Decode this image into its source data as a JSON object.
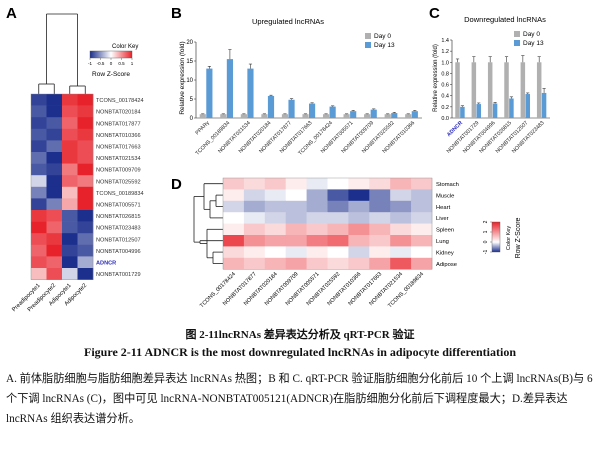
{
  "panel_letters": {
    "a": "A",
    "b": "B",
    "c": "C",
    "d": "D"
  },
  "panel_a": {
    "color_key": {
      "title": "Color Key",
      "ticks": [
        "-1",
        "-0.5",
        "0",
        "0.5",
        "1"
      ],
      "label": "Row Z-Score"
    },
    "rows": [
      "TCONS_00178424",
      "NONBTAT020184",
      "NONBTAT017877",
      "NONBTAT010366",
      "NONBTAT017663",
      "NONBTAT021534",
      "NONBTAT009709",
      "NONBTAT025592",
      "TCONS_00189834",
      "NONBTAT005571",
      "NONBTAT026815",
      "NONBTAT023483",
      "NONBTAT012507",
      "NONBTAT004996",
      "ADNCR",
      "NONBTAT001729"
    ],
    "columns": [
      "Preadipocyte1",
      "Preadipocyte2",
      "Adipocyte1",
      "Adipocyte2"
    ],
    "values": [
      [
        -0.9,
        -1.0,
        0.9,
        1.0
      ],
      [
        -0.8,
        -1.0,
        0.8,
        0.9
      ],
      [
        -0.9,
        -0.8,
        0.7,
        1.0
      ],
      [
        -0.8,
        -0.9,
        0.8,
        0.9
      ],
      [
        -0.9,
        -0.7,
        0.9,
        0.8
      ],
      [
        -0.7,
        -1.0,
        0.9,
        0.8
      ],
      [
        -0.8,
        -0.9,
        0.6,
        1.0
      ],
      [
        -0.2,
        -1.0,
        0.7,
        0.6
      ],
      [
        -0.6,
        -1.0,
        0.3,
        1.0
      ],
      [
        -0.9,
        -0.6,
        0.4,
        1.0
      ],
      [
        0.9,
        0.8,
        -0.8,
        -1.0
      ],
      [
        1.0,
        0.7,
        -0.8,
        -0.9
      ],
      [
        0.8,
        0.9,
        -1.0,
        -0.7
      ],
      [
        0.7,
        1.0,
        -0.9,
        -0.8
      ],
      [
        0.8,
        0.7,
        -1.0,
        -0.4
      ],
      [
        0.3,
        0.8,
        -0.2,
        -1.0
      ]
    ],
    "highlight_row": "ADNCR"
  },
  "chart_data": [
    {
      "type": "bar",
      "title": "Upregulated lncRNAs",
      "ylabel": "Relative expression (fold)",
      "ylim": [
        0,
        20
      ],
      "yticks": [
        0,
        5,
        10,
        15,
        20
      ],
      "categories": [
        "PPARγ",
        "TCONS_00189834",
        "NONBTAT021534",
        "NONBTAT020184",
        "NONBTAT017877",
        "NONBTAT017663",
        "TCONS_00178424",
        "NONBTAT005571",
        "NONBTAT009709",
        "NONBTAT025592",
        "NONBTAT010366"
      ],
      "series": [
        {
          "name": "Day 0",
          "values": [
            1,
            1,
            1,
            1,
            1,
            1,
            1,
            1,
            1,
            1,
            1
          ],
          "errors": [
            0.1,
            0.1,
            0.1,
            0.1,
            0.1,
            0.1,
            0.1,
            0.1,
            0.1,
            0.1,
            0.1
          ]
        },
        {
          "name": "Day 13",
          "values": [
            13.0,
            15.5,
            13.0,
            5.8,
            4.8,
            3.8,
            3.0,
            1.8,
            2.2,
            1.3,
            1.8
          ],
          "errors": [
            0.6,
            2.5,
            1.2,
            0.2,
            0.3,
            0.2,
            0.2,
            0.2,
            0.2,
            0.2,
            0.2
          ]
        }
      ],
      "legend": "top-right"
    },
    {
      "type": "bar",
      "title": "Downregulated lncRNAs",
      "ylabel": "Relative expression (fold)",
      "ylim": [
        0,
        1.4
      ],
      "yticks": [
        0.0,
        0.2,
        0.4,
        0.6,
        0.8,
        1.0,
        1.2,
        1.4
      ],
      "categories": [
        "ADNCR",
        "NONBTAT001729",
        "NONBTAT004996",
        "NONBTAT026815",
        "NONBTAT012507",
        "NONBTAT023483"
      ],
      "series": [
        {
          "name": "Day 0",
          "values": [
            1,
            1,
            1,
            1,
            1,
            1
          ],
          "errors": [
            0.06,
            0.1,
            0.1,
            0.1,
            0.12,
            0.1
          ]
        },
        {
          "name": "Day 13",
          "values": [
            0.2,
            0.25,
            0.26,
            0.35,
            0.43,
            0.45
          ],
          "errors": [
            0.02,
            0.02,
            0.02,
            0.03,
            0.02,
            0.08
          ]
        }
      ],
      "legend": "top-right",
      "highlight_category": "ADNCR"
    },
    {
      "type": "heatmap",
      "rows": [
        "Stomach",
        "Muscle",
        "Heart",
        "Liver",
        "Spleen",
        "Lung",
        "Kidney",
        "Adipose"
      ],
      "columns": [
        "TCONS_00178424",
        "NONBTAT017877",
        "NONBTAT020184",
        "NONBTAT009709",
        "NONBTAT005571",
        "NONBTAT025592",
        "NONBTAT010366",
        "NONBTAT017663",
        "NONBTAT021534",
        "TCONS_00189834"
      ],
      "values": [
        [
          0.3,
          0.2,
          0.3,
          0.1,
          -0.1,
          0.0,
          0.1,
          0.2,
          0.4,
          0.3
        ],
        [
          0.1,
          -0.2,
          -0.1,
          0.0,
          -0.4,
          -0.8,
          -1.0,
          -0.6,
          -0.2,
          -0.3
        ],
        [
          -0.2,
          -0.4,
          -0.3,
          -0.3,
          -0.4,
          -0.6,
          -0.4,
          -0.6,
          -0.5,
          -0.3
        ],
        [
          0.0,
          -0.1,
          -0.2,
          -0.3,
          -0.2,
          -0.2,
          -0.3,
          -0.2,
          -0.3,
          -0.2
        ],
        [
          0.1,
          0.3,
          0.2,
          0.4,
          0.3,
          0.4,
          0.6,
          0.4,
          0.2,
          0.1
        ],
        [
          1.0,
          0.6,
          0.5,
          0.5,
          0.7,
          0.8,
          0.4,
          0.3,
          0.6,
          0.4
        ],
        [
          0.2,
          0.1,
          0.0,
          -0.1,
          0.1,
          0.0,
          -0.2,
          0.1,
          -0.1,
          0.0
        ],
        [
          0.4,
          0.3,
          0.4,
          0.5,
          0.3,
          0.2,
          0.3,
          0.5,
          0.9,
          0.5
        ]
      ],
      "color_key": {
        "title": "Color Key",
        "ticks": [
          "-1",
          "0",
          "1",
          "2"
        ],
        "label": "Row Z-Score"
      }
    }
  ],
  "colors": {
    "day0": "#b0b0b0",
    "day13": "#5b9bd5",
    "error": "#333333",
    "highlight": "#2a2ab8",
    "heat_low": "#1c2f8c",
    "heat_mid": "#ffffff",
    "heat_high": "#e8222a"
  },
  "captions": {
    "cn": "图 2-11lncRNAs 差异表达分析及 qRT-PCR 验证",
    "en": "Figure 2-11 ADNCR is the most downregulated lncRNAs in adipocyte differentiation",
    "desc": "A. 前体脂肪细胞与脂肪细胞差异表达 lncRNAs 热图；B 和 C. qRT-PCR 验证脂肪细胞分化前后 10 个上调 lncRNAs(B)与 6 个下调 lncRNAs (C)，图中可见 lncRNA-NONBTAT005121(ADNCR)在脂肪细胞分化前后下调程度最大；D.差异表达 lncRNAs 组织表达谱分析。"
  }
}
